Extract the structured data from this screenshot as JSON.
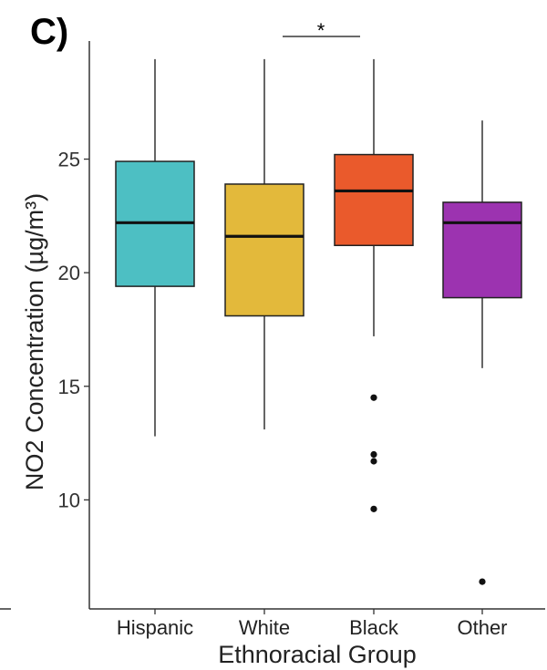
{
  "panel_label": "C)",
  "chart_data": {
    "type": "box",
    "xlabel": "Ethnoracial Group",
    "ylabel": "NO2 Concentration (µg/m³)",
    "ylim": [
      5.2,
      30.8
    ],
    "yticks": [
      10,
      15,
      20,
      25
    ],
    "grid": false,
    "legend": "none",
    "categories": [
      "Hispanic",
      "White",
      "Black",
      "Other"
    ],
    "boxes": [
      {
        "category": "Hispanic",
        "whisker_low": 12.8,
        "q1": 19.4,
        "median": 22.2,
        "q3": 24.9,
        "whisker_high": 29.4,
        "outliers": [],
        "color": "#4dbfc3"
      },
      {
        "category": "White",
        "whisker_low": 13.1,
        "q1": 18.1,
        "median": 21.6,
        "q3": 23.9,
        "whisker_high": 29.4,
        "outliers": [],
        "color": "#e3b93b"
      },
      {
        "category": "Black",
        "whisker_low": 17.2,
        "q1": 21.2,
        "median": 23.6,
        "q3": 25.2,
        "whisker_high": 29.4,
        "outliers": [
          14.5,
          12.0,
          11.7,
          9.6
        ],
        "color": "#ea5a2c"
      },
      {
        "category": "Other",
        "whisker_low": 15.8,
        "q1": 18.9,
        "median": 22.2,
        "q3": 23.1,
        "whisker_high": 26.7,
        "outliers": [
          6.4
        ],
        "color": "#9c33b0"
      }
    ],
    "significance": {
      "from": "White",
      "to": "Black",
      "label": "*"
    }
  }
}
